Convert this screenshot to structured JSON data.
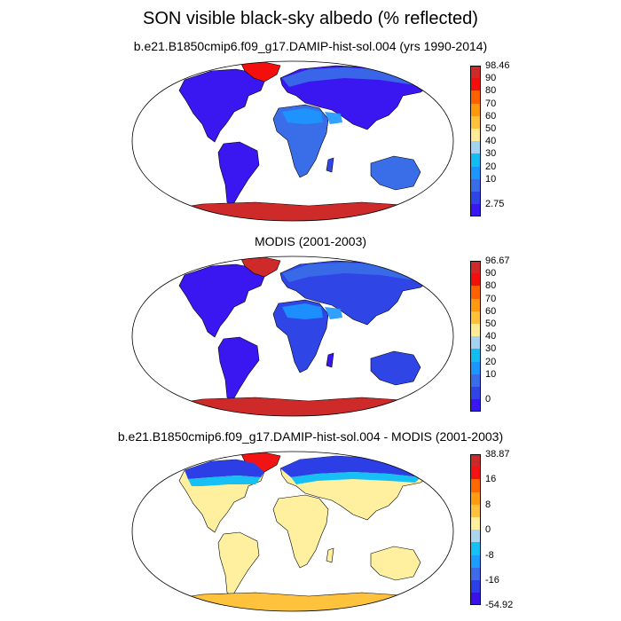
{
  "title": "SON visible black-sky albedo (% reflected)",
  "palette_seq": [
    "#3a16f0",
    "#2f45e6",
    "#3a6ee8",
    "#1c96ff",
    "#13bdf2",
    "#a3d3f0",
    "#ffeb96",
    "#ffc13c",
    "#ff9a0f",
    "#ff6000",
    "#f40f0f",
    "#cf2a2a"
  ],
  "palette_diff": [
    "#3c10e8",
    "#2c3ee6",
    "#3c6ce8",
    "#1c9cff",
    "#16c0f4",
    "#aad6ee",
    "#fff0a0",
    "#ffc23c",
    "#ff9c12",
    "#ff6800",
    "#f21414",
    "#cc2a2a"
  ],
  "panels": [
    {
      "title": "b.e21.B1850cmip6.f09_g17.DAMIP-hist-sol.004 (yrs 1990-2014)",
      "colorbar_labels": [
        "98.46",
        "90",
        "80",
        "70",
        "60",
        "50",
        "40",
        "30",
        "20",
        "10",
        "2.75"
      ],
      "kind": "model"
    },
    {
      "title": "MODIS (2001-2003)",
      "colorbar_labels": [
        "96.67",
        "90",
        "80",
        "70",
        "60",
        "50",
        "40",
        "30",
        "20",
        "10",
        "0"
      ],
      "kind": "obs"
    },
    {
      "title": "b.e21.B1850cmip6.f09_g17.DAMIP-hist-sol.004 - MODIS (2001-2003)",
      "colorbar_labels": [
        "38.87",
        "16",
        "8",
        "0",
        "-8",
        "-16",
        "-54.92"
      ],
      "kind": "diff"
    }
  ]
}
